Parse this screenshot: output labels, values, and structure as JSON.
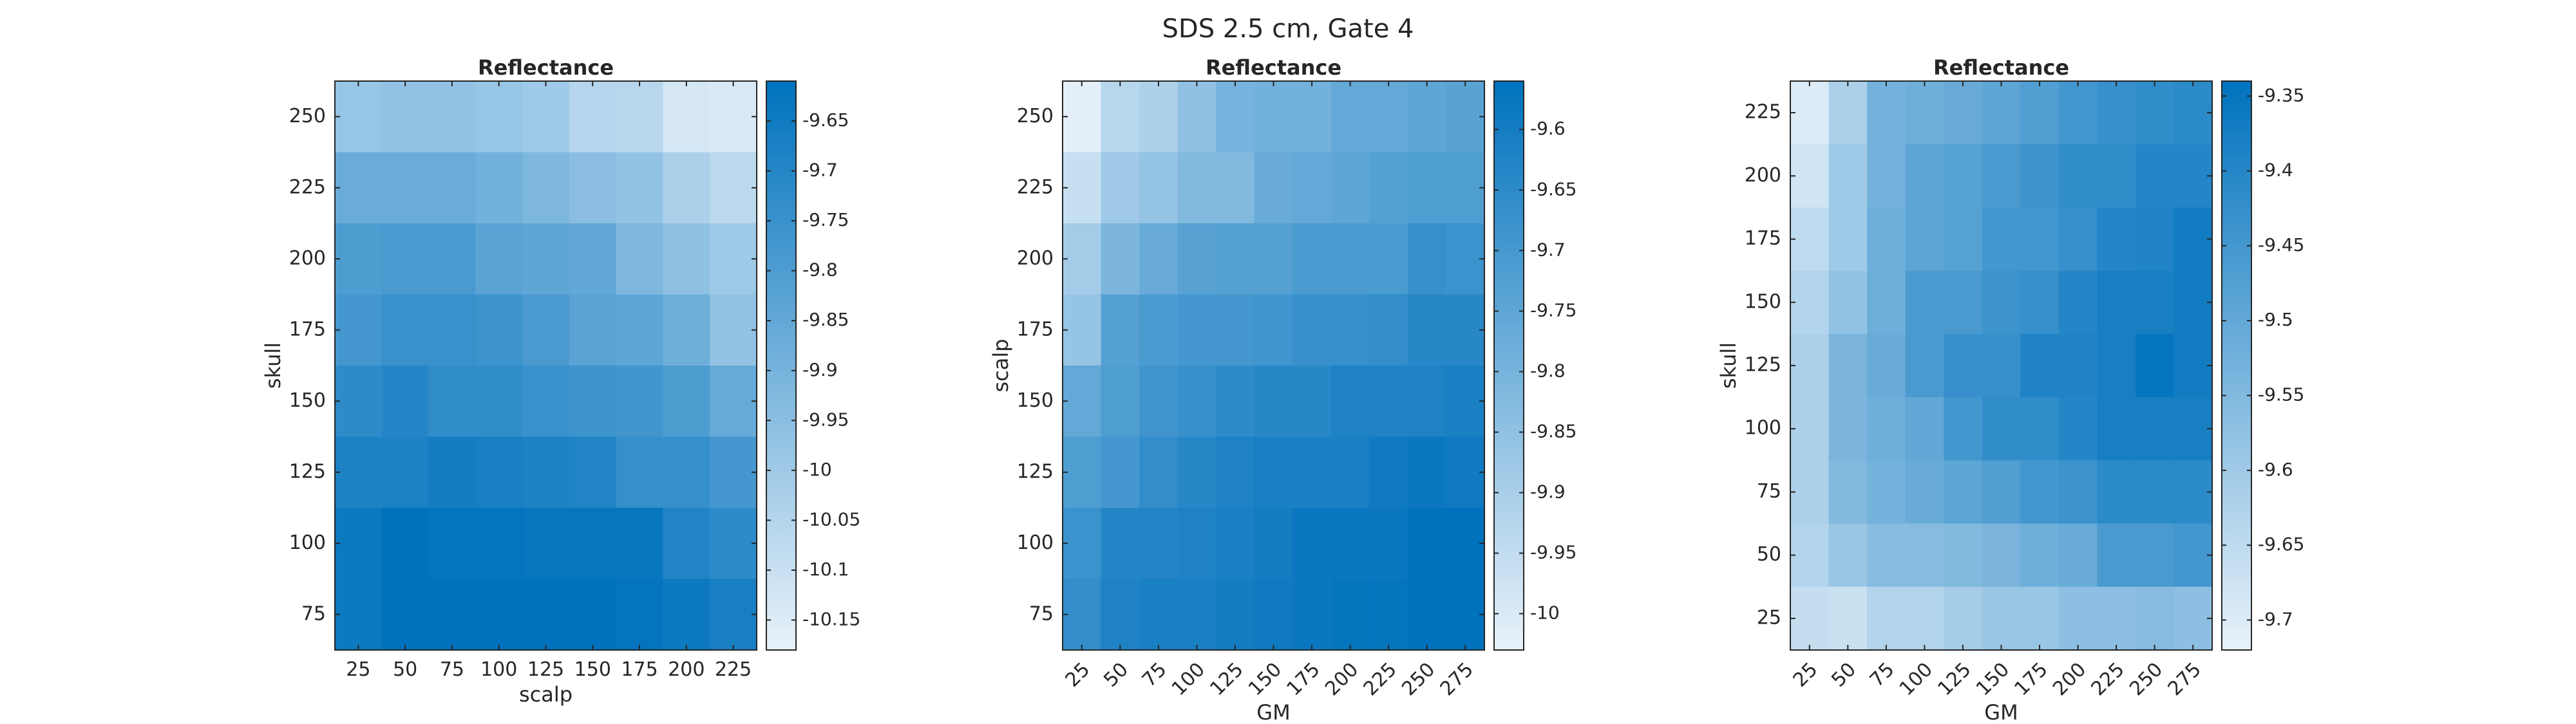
{
  "figure": {
    "title": "SDS 2.5 cm, Gate 4"
  },
  "chart_data": [
    {
      "type": "heatmap",
      "title": "Reflectance",
      "xlabel": "scalp",
      "ylabel": "skull",
      "x": [
        "25",
        "50",
        "75",
        "100",
        "125",
        "150",
        "175",
        "200",
        "225"
      ],
      "y": [
        "250",
        "225",
        "200",
        "175",
        "150",
        "125",
        "100",
        "75"
      ],
      "values": [
        [
          -9.98,
          -9.97,
          -9.97,
          -9.98,
          -10.0,
          -10.05,
          -10.06,
          -10.13,
          -10.14
        ],
        [
          -9.87,
          -9.87,
          -9.87,
          -9.89,
          -9.92,
          -9.95,
          -9.97,
          -10.03,
          -10.07
        ],
        [
          -9.8,
          -9.79,
          -9.79,
          -9.83,
          -9.84,
          -9.85,
          -9.92,
          -9.96,
          -10.0
        ],
        [
          -9.78,
          -9.75,
          -9.75,
          -9.76,
          -9.79,
          -9.83,
          -9.84,
          -9.88,
          -9.97
        ],
        [
          -9.72,
          -9.7,
          -9.73,
          -9.73,
          -9.75,
          -9.76,
          -9.77,
          -9.8,
          -9.86
        ],
        [
          -9.68,
          -9.68,
          -9.66,
          -9.67,
          -9.68,
          -9.69,
          -9.74,
          -9.74,
          -9.78
        ],
        [
          -9.64,
          -9.61,
          -9.62,
          -9.62,
          -9.63,
          -9.63,
          -9.63,
          -9.69,
          -9.72
        ],
        [
          -9.64,
          -9.59,
          -9.58,
          -9.56,
          -9.59,
          -9.59,
          -9.62,
          -9.64,
          -9.67
        ]
      ],
      "clim": [
        -10.18,
        -9.61
      ],
      "colorbar_ticks": [
        "-9.65",
        "-9.7",
        "-9.75",
        "-9.8",
        "-9.85",
        "-9.9",
        "-9.95",
        "-10",
        "-10.05",
        "-10.1",
        "-10.15"
      ],
      "xtick_rotation": 0,
      "colormap": [
        "#e9f2fa",
        "#0072bd"
      ]
    },
    {
      "type": "heatmap",
      "title": "Reflectance",
      "xlabel": "GM",
      "ylabel": "scalp",
      "x": [
        "25",
        "50",
        "75",
        "100",
        "125",
        "150",
        "175",
        "200",
        "225",
        "250",
        "275"
      ],
      "y": [
        "250",
        "225",
        "200",
        "175",
        "150",
        "125",
        "100",
        "75"
      ],
      "values": [
        [
          -10.02,
          -9.93,
          -9.91,
          -9.85,
          -9.8,
          -9.79,
          -9.79,
          -9.76,
          -9.76,
          -9.75,
          -9.74
        ],
        [
          -9.96,
          -9.88,
          -9.86,
          -9.82,
          -9.82,
          -9.77,
          -9.76,
          -9.75,
          -9.73,
          -9.72,
          -9.72
        ],
        [
          -9.89,
          -9.81,
          -9.77,
          -9.74,
          -9.73,
          -9.73,
          -9.71,
          -9.71,
          -9.71,
          -9.67,
          -9.68
        ],
        [
          -9.86,
          -9.73,
          -9.71,
          -9.7,
          -9.7,
          -9.69,
          -9.67,
          -9.67,
          -9.66,
          -9.64,
          -9.64
        ],
        [
          -9.76,
          -9.72,
          -9.69,
          -9.67,
          -9.65,
          -9.64,
          -9.64,
          -9.62,
          -9.62,
          -9.62,
          -9.61
        ],
        [
          -9.72,
          -9.7,
          -9.66,
          -9.64,
          -9.62,
          -9.61,
          -9.61,
          -9.61,
          -9.59,
          -9.58,
          -9.59
        ],
        [
          -9.68,
          -9.63,
          -9.63,
          -9.62,
          -9.61,
          -9.6,
          -9.58,
          -9.58,
          -9.58,
          -9.55,
          -9.55
        ],
        [
          -9.66,
          -9.62,
          -9.61,
          -9.61,
          -9.6,
          -9.59,
          -9.58,
          -9.57,
          -9.57,
          -9.56,
          -9.56
        ]
      ],
      "clim": [
        -10.03,
        -9.56
      ],
      "colorbar_ticks": [
        "-9.6",
        "-9.65",
        "-9.7",
        "-9.75",
        "-9.8",
        "-9.85",
        "-9.9",
        "-9.95",
        "-10"
      ],
      "xtick_rotation": -45,
      "colormap": [
        "#e9f2fa",
        "#0072bd"
      ]
    },
    {
      "type": "heatmap",
      "title": "Reflectance",
      "xlabel": "GM",
      "ylabel": "skull",
      "x": [
        "25",
        "50",
        "75",
        "100",
        "125",
        "150",
        "175",
        "200",
        "225",
        "250",
        "275"
      ],
      "y": [
        "225",
        "200",
        "175",
        "150",
        "125",
        "100",
        "75",
        "50",
        "25"
      ],
      "values": [
        [
          -9.7,
          -9.62,
          -9.53,
          -9.52,
          -9.51,
          -9.49,
          -9.47,
          -9.45,
          -9.43,
          -9.42,
          -9.41
        ],
        [
          -9.68,
          -9.6,
          -9.53,
          -9.49,
          -9.48,
          -9.46,
          -9.44,
          -9.42,
          -9.42,
          -9.4,
          -9.4
        ],
        [
          -9.65,
          -9.6,
          -9.52,
          -9.49,
          -9.48,
          -9.45,
          -9.45,
          -9.43,
          -9.4,
          -9.39,
          -9.37
        ],
        [
          -9.63,
          -9.58,
          -9.52,
          -9.46,
          -9.46,
          -9.44,
          -9.43,
          -9.4,
          -9.38,
          -9.38,
          -9.37
        ],
        [
          -9.62,
          -9.54,
          -9.51,
          -9.46,
          -9.43,
          -9.43,
          -9.39,
          -9.39,
          -9.38,
          -9.35,
          -9.37
        ],
        [
          -9.62,
          -9.54,
          -9.52,
          -9.5,
          -9.45,
          -9.42,
          -9.42,
          -9.4,
          -9.38,
          -9.38,
          -9.38
        ],
        [
          -9.62,
          -9.55,
          -9.53,
          -9.51,
          -9.49,
          -9.47,
          -9.45,
          -9.44,
          -9.41,
          -9.41,
          -9.41
        ],
        [
          -9.63,
          -9.59,
          -9.56,
          -9.56,
          -9.55,
          -9.54,
          -9.52,
          -9.51,
          -9.46,
          -9.46,
          -9.45
        ],
        [
          -9.66,
          -9.67,
          -9.63,
          -9.63,
          -9.61,
          -9.59,
          -9.59,
          -9.57,
          -9.57,
          -9.56,
          -9.57
        ]
      ],
      "clim": [
        -9.72,
        -9.34
      ],
      "colorbar_ticks": [
        "-9.35",
        "-9.4",
        "-9.45",
        "-9.5",
        "-9.55",
        "-9.6",
        "-9.65",
        "-9.7"
      ],
      "xtick_rotation": -45,
      "colormap": [
        "#e9f2fa",
        "#0072bd"
      ]
    }
  ]
}
